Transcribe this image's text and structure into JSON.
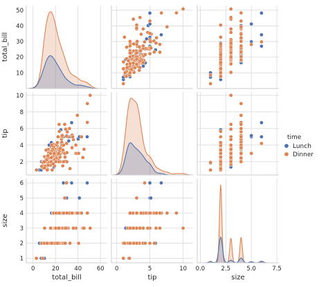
{
  "chart_data": {
    "type": "scatter",
    "subtype": "pairplot",
    "variables": [
      "total_bill",
      "tip",
      "size"
    ],
    "hue": "time",
    "legend": {
      "title": "time",
      "entries": [
        "Lunch",
        "Dinner"
      ],
      "placement": "right"
    },
    "colors": {
      "Lunch": "#4c72b0",
      "Dinner": "#dd8452",
      "grid": "#d9d9d9",
      "tick_text": "#262626"
    },
    "grid": true,
    "axes": {
      "total_bill": {
        "range": [
          -6,
          66
        ],
        "ticks": [
          0,
          20,
          40,
          60
        ],
        "row_range": [
          0,
          53
        ],
        "row_ticks": [
          10,
          20,
          30,
          40,
          50
        ]
      },
      "tip": {
        "range": [
          -0.8,
          11.5
        ],
        "ticks": [
          0,
          5,
          10
        ],
        "row_range": [
          0.4,
          10.4
        ],
        "row_ticks": [
          2,
          4,
          6,
          8,
          10
        ]
      },
      "size": {
        "range": [
          -0.3,
          7.7
        ],
        "ticks": [
          0.0,
          2.5,
          5.0,
          7.5
        ],
        "tick_labels": [
          "0.0",
          "2.5",
          "5.0",
          "7.5"
        ],
        "row_range": [
          0.7,
          6.3
        ],
        "row_ticks": [
          1,
          2,
          3,
          4,
          5,
          6
        ]
      }
    },
    "points": {
      "Lunch": [
        [
          27.2,
          4.0,
          4
        ],
        [
          22.76,
          3.0,
          2
        ],
        [
          17.29,
          2.71,
          2
        ],
        [
          19.44,
          3.0,
          2
        ],
        [
          16.66,
          3.4,
          2
        ],
        [
          10.07,
          1.83,
          1
        ],
        [
          32.68,
          5.0,
          2
        ],
        [
          15.98,
          2.03,
          2
        ],
        [
          34.83,
          5.17,
          4
        ],
        [
          13.03,
          2.0,
          2
        ],
        [
          18.28,
          4.0,
          2
        ],
        [
          24.71,
          5.85,
          2
        ],
        [
          21.16,
          3.0,
          2
        ],
        [
          28.97,
          3.0,
          2
        ],
        [
          22.49,
          3.5,
          2
        ],
        [
          5.75,
          1.0,
          2
        ],
        [
          16.32,
          4.3,
          2
        ],
        [
          22.75,
          3.25,
          2
        ],
        [
          40.17,
          4.73,
          4
        ],
        [
          27.28,
          4.0,
          2
        ],
        [
          12.03,
          1.5,
          2
        ],
        [
          21.01,
          3.0,
          2
        ],
        [
          12.46,
          1.5,
          2
        ],
        [
          11.35,
          2.5,
          2
        ],
        [
          15.38,
          3.0,
          2
        ],
        [
          44.3,
          2.5,
          3
        ],
        [
          22.42,
          3.48,
          2
        ],
        [
          20.92,
          4.08,
          2
        ],
        [
          15.36,
          1.64,
          2
        ],
        [
          20.49,
          4.06,
          2
        ],
        [
          25.21,
          4.29,
          2
        ],
        [
          18.24,
          3.76,
          2
        ],
        [
          14.31,
          4.0,
          2
        ],
        [
          14.0,
          3.0,
          2
        ],
        [
          7.25,
          1.0,
          1
        ],
        [
          8.51,
          1.25,
          2
        ],
        [
          10.33,
          2.0,
          2
        ],
        [
          14.15,
          2.0,
          2
        ],
        [
          16.0,
          2.0,
          2
        ],
        [
          13.16,
          2.75,
          2
        ],
        [
          17.47,
          3.5,
          2
        ],
        [
          34.3,
          6.7,
          6
        ],
        [
          41.19,
          5.0,
          5
        ],
        [
          27.05,
          5.0,
          6
        ],
        [
          16.43,
          2.3,
          2
        ],
        [
          8.35,
          1.5,
          2
        ],
        [
          18.64,
          1.36,
          3
        ],
        [
          11.87,
          1.63,
          2
        ],
        [
          9.78,
          1.73,
          2
        ],
        [
          7.51,
          2.0,
          2
        ],
        [
          14.07,
          2.5,
          2
        ],
        [
          13.13,
          2.0,
          2
        ],
        [
          17.26,
          2.74,
          3
        ],
        [
          24.55,
          2.0,
          4
        ],
        [
          19.77,
          2.0,
          4
        ],
        [
          29.85,
          5.14,
          5
        ],
        [
          48.17,
          5.0,
          6
        ],
        [
          25.0,
          3.75,
          4
        ],
        [
          13.39,
          2.61,
          2
        ],
        [
          16.49,
          2.0,
          4
        ],
        [
          21.5,
          3.5,
          4
        ],
        [
          12.66,
          2.5,
          2
        ],
        [
          16.21,
          2.0,
          3
        ],
        [
          13.81,
          2.0,
          2
        ],
        [
          17.51,
          3.0,
          2
        ],
        [
          24.52,
          3.48,
          3
        ],
        [
          20.76,
          2.24,
          2
        ],
        [
          31.71,
          4.5,
          4
        ],
        [
          10.59,
          1.61,
          2
        ],
        [
          10.63,
          2.0,
          2
        ]
      ],
      "Dinner": [
        [
          16.99,
          1.01,
          2
        ],
        [
          10.34,
          1.66,
          3
        ],
        [
          21.01,
          3.5,
          3
        ],
        [
          23.68,
          3.31,
          2
        ],
        [
          24.59,
          3.61,
          4
        ],
        [
          25.29,
          4.71,
          4
        ],
        [
          8.77,
          2.0,
          2
        ],
        [
          26.88,
          3.12,
          4
        ],
        [
          15.04,
          1.96,
          2
        ],
        [
          14.78,
          3.23,
          2
        ],
        [
          10.27,
          1.71,
          2
        ],
        [
          35.26,
          5.0,
          4
        ],
        [
          15.42,
          1.57,
          2
        ],
        [
          18.43,
          3.0,
          4
        ],
        [
          14.83,
          3.02,
          2
        ],
        [
          21.58,
          3.92,
          2
        ],
        [
          10.33,
          1.67,
          3
        ],
        [
          16.29,
          3.71,
          3
        ],
        [
          16.97,
          3.5,
          3
        ],
        [
          20.65,
          3.35,
          3
        ],
        [
          17.92,
          4.08,
          2
        ],
        [
          20.29,
          2.75,
          2
        ],
        [
          15.77,
          2.23,
          2
        ],
        [
          39.42,
          7.58,
          4
        ],
        [
          19.82,
          3.18,
          2
        ],
        [
          17.81,
          2.34,
          4
        ],
        [
          13.37,
          2.0,
          2
        ],
        [
          12.69,
          2.0,
          2
        ],
        [
          21.7,
          4.3,
          2
        ],
        [
          19.65,
          3.0,
          2
        ],
        [
          9.55,
          1.45,
          2
        ],
        [
          18.35,
          2.5,
          4
        ],
        [
          15.06,
          3.0,
          2
        ],
        [
          20.69,
          2.45,
          4
        ],
        [
          17.78,
          3.27,
          2
        ],
        [
          24.06,
          3.6,
          3
        ],
        [
          16.31,
          2.0,
          3
        ],
        [
          16.93,
          3.07,
          3
        ],
        [
          18.69,
          2.31,
          3
        ],
        [
          31.27,
          5.0,
          3
        ],
        [
          16.04,
          2.24,
          3
        ],
        [
          17.46,
          2.54,
          2
        ],
        [
          13.94,
          3.06,
          2
        ],
        [
          9.68,
          1.32,
          2
        ],
        [
          30.4,
          5.6,
          4
        ],
        [
          18.29,
          3.0,
          2
        ],
        [
          22.23,
          5.0,
          2
        ],
        [
          32.4,
          6.0,
          4
        ],
        [
          28.55,
          2.05,
          3
        ],
        [
          18.04,
          3.0,
          2
        ],
        [
          12.54,
          2.5,
          2
        ],
        [
          10.29,
          2.6,
          2
        ],
        [
          34.81,
          5.2,
          4
        ],
        [
          9.94,
          1.56,
          2
        ],
        [
          25.56,
          4.34,
          4
        ],
        [
          19.49,
          3.51,
          2
        ],
        [
          38.01,
          3.0,
          4
        ],
        [
          26.41,
          1.5,
          2
        ],
        [
          11.24,
          1.76,
          2
        ],
        [
          48.27,
          6.73,
          4
        ],
        [
          20.29,
          3.21,
          2
        ],
        [
          13.81,
          2.0,
          2
        ],
        [
          11.02,
          1.98,
          2
        ],
        [
          18.29,
          3.76,
          4
        ],
        [
          17.59,
          2.64,
          3
        ],
        [
          20.08,
          3.15,
          3
        ],
        [
          16.45,
          2.47,
          2
        ],
        [
          3.07,
          1.0,
          1
        ],
        [
          20.23,
          2.01,
          2
        ],
        [
          15.01,
          2.09,
          2
        ],
        [
          12.02,
          1.97,
          2
        ],
        [
          17.07,
          3.0,
          3
        ],
        [
          26.86,
          3.14,
          2
        ],
        [
          25.28,
          5.0,
          2
        ],
        [
          14.73,
          2.2,
          2
        ],
        [
          10.51,
          1.25,
          2
        ],
        [
          26.12,
          5.0,
          4
        ],
        [
          38.07,
          4.0,
          3
        ],
        [
          23.95,
          2.55,
          2
        ],
        [
          25.71,
          4.0,
          3
        ],
        [
          17.31,
          3.5,
          2
        ],
        [
          29.93,
          5.07,
          4
        ],
        [
          15.48,
          2.02,
          2
        ],
        [
          10.65,
          1.5,
          2
        ],
        [
          12.43,
          1.8,
          2
        ],
        [
          24.08,
          2.92,
          4
        ],
        [
          11.69,
          2.31,
          2
        ],
        [
          13.42,
          1.68,
          2
        ],
        [
          14.26,
          2.5,
          2
        ],
        [
          15.95,
          2.0,
          2
        ],
        [
          12.48,
          2.52,
          2
        ],
        [
          29.8,
          4.2,
          6
        ],
        [
          8.52,
          1.48,
          2
        ],
        [
          14.52,
          2.0,
          2
        ],
        [
          11.38,
          2.0,
          2
        ],
        [
          22.82,
          2.18,
          3
        ],
        [
          19.08,
          1.5,
          2
        ],
        [
          20.27,
          2.83,
          2
        ],
        [
          11.17,
          1.5,
          2
        ],
        [
          12.26,
          2.0,
          2
        ],
        [
          18.26,
          3.25,
          2
        ],
        [
          8.51,
          1.25,
          2
        ],
        [
          10.33,
          2.0,
          2
        ],
        [
          14.15,
          2.0,
          2
        ],
        [
          16.0,
          2.0,
          2
        ],
        [
          13.16,
          2.75,
          2
        ],
        [
          17.47,
          3.5,
          2
        ],
        [
          20.53,
          4.0,
          4
        ],
        [
          16.47,
          3.23,
          3
        ],
        [
          26.59,
          3.41,
          3
        ],
        [
          38.73,
          3.0,
          4
        ],
        [
          24.27,
          2.03,
          2
        ],
        [
          12.76,
          2.23,
          2
        ],
        [
          30.06,
          2.0,
          3
        ],
        [
          25.89,
          5.16,
          4
        ],
        [
          48.33,
          9.0,
          4
        ],
        [
          13.27,
          2.5,
          2
        ],
        [
          28.17,
          6.5,
          3
        ],
        [
          12.9,
          1.1,
          2
        ],
        [
          28.15,
          3.0,
          5
        ],
        [
          11.59,
          1.5,
          2
        ],
        [
          7.74,
          1.44,
          2
        ],
        [
          30.14,
          3.09,
          4
        ],
        [
          12.16,
          2.2,
          2
        ],
        [
          13.42,
          3.48,
          2
        ],
        [
          8.58,
          1.92,
          1
        ],
        [
          15.98,
          3.0,
          3
        ],
        [
          13.42,
          1.58,
          2
        ],
        [
          16.27,
          2.5,
          2
        ],
        [
          10.09,
          2.0,
          2
        ],
        [
          20.45,
          3.0,
          4
        ],
        [
          13.28,
          2.72,
          2
        ],
        [
          22.12,
          2.88,
          2
        ],
        [
          24.01,
          2.0,
          4
        ],
        [
          15.69,
          3.0,
          3
        ],
        [
          11.61,
          3.39,
          2
        ],
        [
          10.77,
          1.47,
          2
        ],
        [
          15.53,
          3.0,
          2
        ],
        [
          10.07,
          1.25,
          2
        ],
        [
          12.6,
          1.0,
          2
        ],
        [
          32.83,
          1.17,
          2
        ],
        [
          35.83,
          4.67,
          3
        ],
        [
          29.03,
          5.92,
          3
        ],
        [
          27.18,
          2.0,
          2
        ],
        [
          22.67,
          2.0,
          2
        ],
        [
          17.82,
          1.75,
          2
        ],
        [
          18.78,
          3.0,
          2
        ],
        [
          50.81,
          10.0,
          3
        ],
        [
          45.35,
          3.5,
          3
        ],
        [
          40.55,
          3.0,
          2
        ],
        [
          43.11,
          5.0,
          4
        ],
        [
          44.3,
          2.5,
          3
        ],
        [
          23.17,
          6.5,
          4
        ],
        [
          27.2,
          4.0,
          4
        ],
        [
          35.26,
          5.0,
          4
        ],
        [
          34.65,
          3.68,
          4
        ],
        [
          23.33,
          5.65,
          2
        ],
        [
          45.35,
          3.5,
          3
        ],
        [
          39.42,
          7.58,
          4
        ],
        [
          20.92,
          4.08,
          2
        ],
        [
          22.76,
          3.0,
          2
        ],
        [
          28.44,
          2.56,
          2
        ],
        [
          20.23,
          2.01,
          2
        ],
        [
          16.58,
          4.0,
          2
        ],
        [
          21.7,
          4.3,
          2
        ]
      ]
    },
    "kde_peaks": {
      "total_bill": {
        "Lunch": 14.5,
        "Dinner": 17.5
      },
      "tip": {
        "Lunch": 2.0,
        "Dinner": 2.6
      },
      "size": {
        "Lunch": 2.0,
        "Dinner": 2.0
      }
    }
  }
}
